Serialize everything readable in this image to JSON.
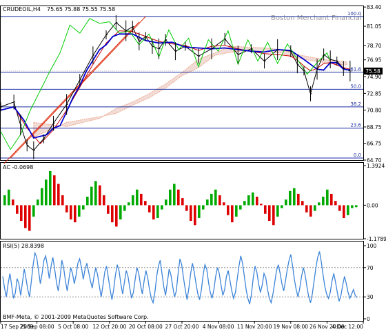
{
  "chart_data": [
    {
      "type": "candlestick",
      "symbol_label": "CRUDEOIL,H4",
      "ohlc_label": "75.65 75.88 75.55 75.58",
      "watermark": "Boston Merchant Financial",
      "ylim": [
        64.7,
        83.5
      ],
      "y_ticks": [
        "83.40",
        "81.05",
        "78.70",
        "76.95",
        "74.90",
        "72.85",
        "70.80",
        "68.75",
        "66.75",
        "64.70"
      ],
      "last_price": 75.58,
      "last_price_label": "75.58",
      "fibonacci": {
        "levels": [
          {
            "label": "100.0",
            "price": 82.25
          },
          {
            "label": "61.8",
            "price": 75.45
          },
          {
            "label": "50.0",
            "price": 73.35
          },
          {
            "label": "38.2",
            "price": 71.2
          },
          {
            "label": "23.6",
            "price": 68.6
          },
          {
            "label": "0.0",
            "price": 64.95
          }
        ]
      },
      "kumo_cloud": {
        "x": [
          10,
          20,
          30,
          35,
          40,
          45,
          50,
          55,
          60,
          65,
          70,
          75,
          80,
          85,
          90,
          95,
          100,
          105
        ],
        "span_a": [
          69.3,
          68.8,
          69.8,
          71.0,
          71.8,
          72.8,
          74.0,
          75.4,
          77.0,
          77.8,
          78.6,
          78.5,
          78.4,
          78.2,
          77.6,
          77.2,
          76.9,
          76.7
        ],
        "span_b": [
          67.5,
          69.3,
          70.0,
          70.4,
          71.4,
          72.3,
          73.5,
          75.0,
          76.0,
          77.5,
          77.9,
          78.1,
          77.9,
          77.8,
          77.2,
          76.8,
          76.5,
          76.3
        ]
      },
      "series": [
        {
          "name": "close",
          "color": "#000000",
          "x": [
            0,
            4,
            6,
            8,
            10,
            13,
            16,
            20,
            24,
            28,
            32,
            35,
            38,
            40,
            42,
            44,
            46,
            48,
            50,
            53,
            56,
            60,
            64,
            68,
            72,
            76,
            80,
            84,
            88,
            90,
            92,
            94,
            96,
            98,
            100,
            102,
            104,
            106
          ],
          "values": [
            71.2,
            71.8,
            69.0,
            66.5,
            65.9,
            67.3,
            69.2,
            71.5,
            74.5,
            77.5,
            80.0,
            81.5,
            80.5,
            81.0,
            79.2,
            79.8,
            78.6,
            78.3,
            79.4,
            78.0,
            78.6,
            77.4,
            78.3,
            79.5,
            77.6,
            78.3,
            76.8,
            78.2,
            78.0,
            76.4,
            75.6,
            72.8,
            75.8,
            77.6,
            77.0,
            76.8,
            75.9,
            75.58
          ]
        },
        {
          "name": "tenkan-sen",
          "color": "#cc0000",
          "x": [
            0,
            4,
            8,
            12,
            16,
            20,
            24,
            28,
            32,
            36,
            40,
            44,
            48,
            52,
            56,
            60,
            64,
            68,
            72,
            76,
            80,
            84,
            88,
            90,
            92,
            94,
            96,
            98,
            100,
            102,
            104,
            106
          ],
          "values": [
            70.8,
            71.2,
            68.6,
            66.7,
            68.4,
            70.8,
            73.6,
            76.4,
            79.0,
            80.5,
            80.4,
            79.8,
            79.2,
            78.9,
            78.7,
            78.1,
            78.6,
            78.7,
            78.3,
            78.0,
            77.7,
            77.6,
            77.4,
            76.9,
            76.2,
            75.6,
            75.9,
            76.5,
            76.6,
            76.3,
            76.0,
            75.8
          ]
        },
        {
          "name": "kijun-sen",
          "color": "#0000cc",
          "x": [
            0,
            4,
            7,
            10,
            14,
            16,
            18,
            20,
            22,
            24,
            26,
            28,
            30,
            32,
            34,
            36,
            40,
            44,
            48,
            52,
            56,
            60,
            64,
            68,
            72,
            76,
            80,
            84,
            88,
            92,
            96,
            98,
            100,
            102,
            104,
            106
          ],
          "values": [
            70.8,
            71.2,
            69.6,
            67.4,
            67.8,
            68.6,
            68.9,
            70.6,
            72.4,
            73.8,
            75.6,
            76.9,
            78.2,
            78.8,
            79.8,
            80.1,
            80.1,
            79.3,
            79.0,
            79.1,
            78.5,
            78.4,
            78.3,
            78.4,
            78.2,
            78.0,
            77.9,
            78.2,
            78.1,
            77.0,
            75.8,
            75.7,
            76.6,
            76.6,
            75.8,
            75.7
          ]
        },
        {
          "name": "chikou-span",
          "color": "#00cc00",
          "x": [
            0,
            3,
            6,
            9,
            12,
            15,
            18,
            21,
            24,
            27,
            30,
            33,
            36,
            39,
            42,
            45,
            48,
            51,
            54,
            57,
            60,
            63,
            66,
            69,
            72,
            75,
            78,
            81,
            84,
            87,
            90,
            93,
            96,
            99,
            100
          ],
          "values": [
            68.2,
            66.0,
            67.8,
            70.8,
            73.2,
            75.6,
            77.8,
            81.2,
            80.2,
            82.0,
            81.4,
            81.6,
            80.2,
            80.5,
            78.8,
            80.1,
            77.3,
            80.6,
            78.2,
            79.6,
            76.1,
            79.4,
            78.0,
            80.5,
            76.4,
            79.4,
            76.8,
            79.1,
            76.5,
            78.9,
            77.0,
            75.2,
            76.6,
            77.8,
            76.8
          ]
        }
      ]
    },
    {
      "type": "bar",
      "title": "AC -0.0698",
      "ylim": [
        -1.1789,
        1.3924
      ],
      "y_ticks": [
        "1.3924",
        "0.00",
        "-1.1789"
      ],
      "colors": {
        "up": "#00aa00",
        "down": "#dd0000"
      },
      "bar_width": 0.6,
      "values": [
        0.35,
        0.55,
        0.2,
        -0.3,
        -0.55,
        -0.8,
        -0.9,
        -0.4,
        0.2,
        0.6,
        0.9,
        1.2,
        1.05,
        0.75,
        0.35,
        -0.25,
        -0.5,
        -0.6,
        -0.4,
        -0.15,
        0.3,
        0.65,
        0.85,
        0.7,
        0.35,
        -0.3,
        -0.6,
        -0.75,
        -0.5,
        -0.2,
        0.1,
        0.35,
        0.55,
        0.4,
        0.15,
        -0.25,
        -0.5,
        -0.45,
        -0.15,
        0.2,
        0.55,
        0.75,
        0.55,
        0.25,
        -0.2,
        -0.55,
        -0.7,
        -0.45,
        -0.15,
        0.2,
        0.4,
        0.55,
        0.35,
        0.1,
        -0.35,
        -0.6,
        -0.4,
        -0.15,
        0.15,
        0.35,
        0.45,
        0.3,
        0.05,
        -0.3,
        -0.55,
        -0.7,
        -0.4,
        -0.1,
        0.2,
        0.5,
        0.6,
        0.4,
        0.15,
        -0.25,
        -0.4,
        -0.2,
        0.1,
        0.3,
        0.55,
        0.4,
        0.15,
        -0.2,
        -0.45,
        -0.35,
        -0.1,
        -0.07
      ]
    },
    {
      "type": "line",
      "title": "RSI(5) 28.8398",
      "ylim": [
        0,
        100
      ],
      "y_ticks": [
        "100",
        "70",
        "30",
        "0"
      ],
      "guide_levels": [
        70,
        30
      ],
      "color": "#3d84d8",
      "values": [
        58,
        42,
        30,
        48,
        62,
        45,
        28,
        35,
        55,
        48,
        32,
        50,
        68,
        55,
        40,
        30,
        52,
        74,
        90,
        84,
        66,
        48,
        62,
        80,
        86,
        72,
        55,
        72,
        84,
        68,
        50,
        38,
        56,
        80,
        70,
        52,
        38,
        55,
        70,
        62,
        48,
        60,
        76,
        82,
        70,
        54,
        68,
        76,
        64,
        52,
        42,
        58,
        70,
        60,
        44,
        30,
        46,
        64,
        72,
        56,
        40,
        26,
        40,
        60,
        74,
        66,
        48,
        34,
        50,
        66,
        58,
        42,
        28,
        36,
        54,
        70,
        62,
        46,
        34,
        52,
        66,
        56,
        40,
        28,
        22,
        36,
        58,
        72,
        80,
        62,
        44,
        32,
        50,
        68,
        60,
        44,
        30,
        38,
        62,
        82,
        74,
        56,
        40,
        26,
        42,
        62,
        76,
        64,
        48,
        34,
        26,
        40,
        60,
        74,
        68,
        50,
        36,
        28,
        40,
        58,
        70,
        62,
        46,
        32,
        40,
        58,
        66,
        52,
        38,
        28,
        36,
        54,
        72,
        86,
        76,
        58,
        40,
        28,
        20,
        34,
        56,
        72,
        64,
        48,
        36,
        46,
        62,
        56,
        40,
        28,
        22,
        34,
        50,
        66,
        74,
        62,
        48,
        38,
        52,
        68,
        80,
        88,
        72,
        54,
        40,
        30,
        42,
        58,
        70,
        60,
        44,
        30,
        22,
        34,
        52,
        70,
        84,
        92,
        78,
        60,
        44,
        34,
        28,
        36,
        52,
        62,
        50,
        36,
        24,
        32,
        46,
        58,
        48,
        36,
        28,
        34,
        40,
        32,
        28.84
      ]
    }
  ],
  "x_axis": {
    "labels": [
      "17 Sep 2009",
      "25 Sep 08:00",
      "5 Oct 08:00",
      "12 Oct 20:00",
      "20 Oct 08:00",
      "27 Oct 20:00",
      "4 Nov 08:00",
      "11 Nov 20:00",
      "19 Nov 08:00",
      "26 Nov 20:00",
      "4 Dec 12:00"
    ],
    "positions": [
      0,
      11,
      22,
      33,
      44,
      55,
      66,
      77,
      88,
      99,
      110
    ]
  },
  "footer": "BMF-Meta, © 2001-2009 MetaQuotes Software Corp."
}
